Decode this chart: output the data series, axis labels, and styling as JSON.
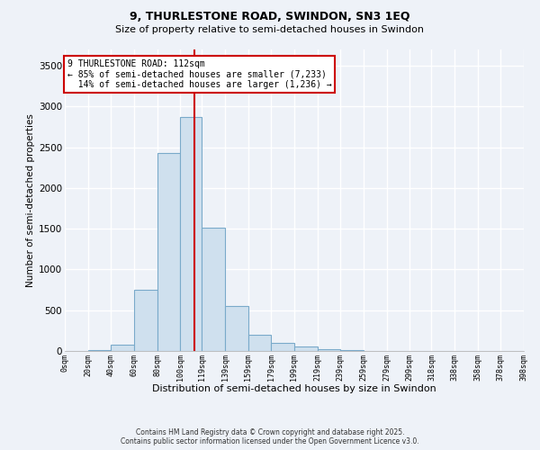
{
  "title1": "9, THURLESTONE ROAD, SWINDON, SN3 1EQ",
  "title2": "Size of property relative to semi-detached houses in Swindon",
  "xlabel": "Distribution of semi-detached houses by size in Swindon",
  "ylabel": "Number of semi-detached properties",
  "bar_edges": [
    0,
    20,
    40,
    60,
    80,
    100,
    119,
    139,
    159,
    179,
    199,
    219,
    239,
    259,
    279,
    299,
    318,
    338,
    358,
    378,
    398
  ],
  "bar_heights": [
    5,
    10,
    80,
    750,
    2430,
    2870,
    1510,
    550,
    200,
    100,
    50,
    20,
    10,
    5,
    3,
    2,
    1,
    0,
    0,
    0
  ],
  "bar_color": "#cfe0ee",
  "bar_edge_color": "#7aaaca",
  "property_line_x": 112,
  "property_size": "112sqm",
  "pct_smaller": 85,
  "pct_larger": 14,
  "n_smaller": "7,233",
  "n_larger": "1,236",
  "vline_color": "#cc0000",
  "annotation_box_color": "#cc0000",
  "background_color": "#eef2f8",
  "grid_color": "#d8e4f0",
  "footer1": "Contains HM Land Registry data © Crown copyright and database right 2025.",
  "footer2": "Contains public sector information licensed under the Open Government Licence v3.0.",
  "ylim": [
    0,
    3700
  ],
  "yticks": [
    0,
    500,
    1000,
    1500,
    2000,
    2500,
    3000,
    3500
  ],
  "xtick_labels": [
    "0sqm",
    "20sqm",
    "40sqm",
    "60sqm",
    "80sqm",
    "100sqm",
    "119sqm",
    "139sqm",
    "159sqm",
    "179sqm",
    "199sqm",
    "219sqm",
    "239sqm",
    "259sqm",
    "279sqm",
    "299sqm",
    "318sqm",
    "338sqm",
    "358sqm",
    "378sqm",
    "398sqm"
  ]
}
